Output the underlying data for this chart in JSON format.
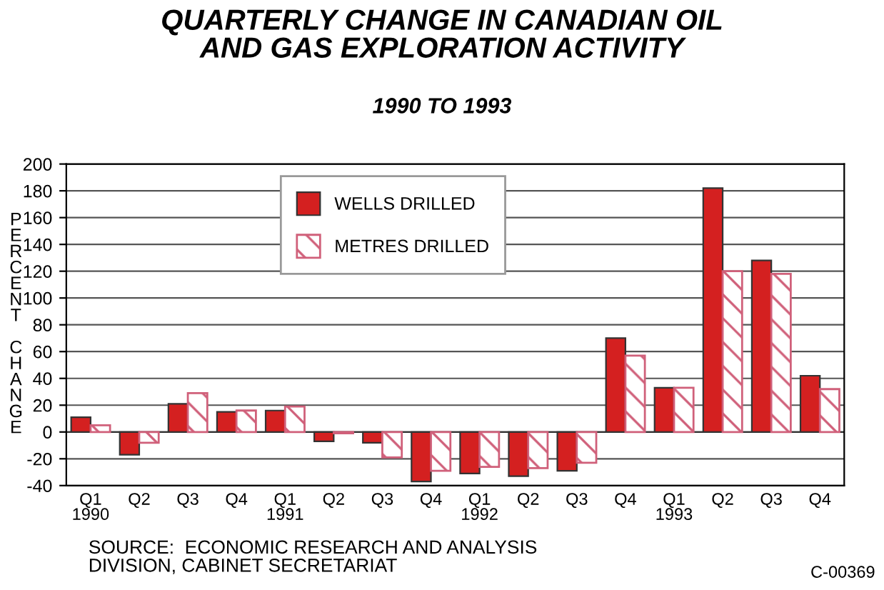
{
  "chart_data": {
    "type": "bar",
    "title": "QUARTERLY CHANGE IN CANADIAN OIL\nAND GAS EXPLORATION ACTIVITY",
    "subtitle": "1990 TO 1993",
    "ylabel": "PERCENT CHANGE",
    "categories": [
      "Q1\n1990",
      "Q2",
      "Q3",
      "Q4",
      "Q1\n1991",
      "Q2",
      "Q3",
      "Q4",
      "Q1\n1992",
      "Q2",
      "Q3",
      "Q4",
      "Q1\n1993",
      "Q2",
      "Q3",
      "Q4"
    ],
    "series": [
      {
        "name": "WELLS DRILLED",
        "color": "#d42020",
        "values": [
          11,
          -17,
          21,
          15,
          16,
          -7,
          -8,
          -37,
          -31,
          -33,
          -29,
          70,
          33,
          182,
          128,
          42
        ]
      },
      {
        "name": "METRES DRILLED",
        "color": "#d0607a",
        "values": [
          5,
          -8,
          29,
          16,
          19,
          -1,
          -19,
          -29,
          -26,
          -27,
          -23,
          57,
          33,
          120,
          118,
          32
        ]
      }
    ],
    "ylim": [
      -40,
      200
    ],
    "yticks": [
      -40,
      -20,
      0,
      20,
      40,
      60,
      80,
      100,
      120,
      140,
      160,
      180,
      200
    ],
    "grid": "y",
    "legend": "top",
    "annotations": [
      "SOURCE:  ECONOMIC RESEARCH AND ANALYSIS\nDIVISION, CABINET SECRETARIAT",
      "C-00369"
    ]
  }
}
